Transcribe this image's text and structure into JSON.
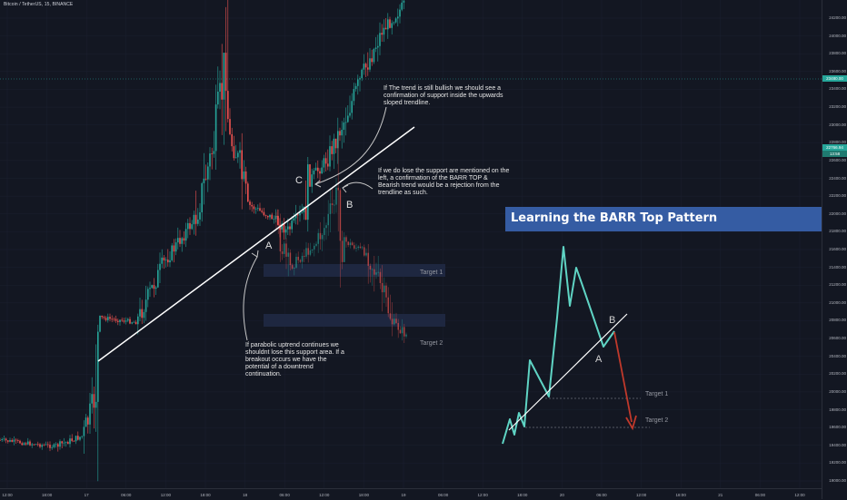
{
  "header": {
    "symbol": "Bitcoin / TetherUS, 15, BINANCE"
  },
  "annotations": {
    "bullish_note": "If The trend is still bullish we should see a confirmation of support inside the upwards sloped trendline.",
    "rejection_note": "If we do lose the support are mentioned on the left, a confirmation of the BARR TOP & Bearish trend would be a rejection from the trendline as such.",
    "parabolic_note": "If parabolic uptrend continues we shouldnt lose this support area. If a breakout occurs we have the potential of a downtrend continuation.",
    "label_a": "A",
    "label_b": "B",
    "label_c": "C",
    "target1": "Target 1",
    "target2": "Target 2"
  },
  "pattern": {
    "title": "Learning the BARR Top Pattern",
    "label_a": "A",
    "label_b": "B",
    "target1": "Target 1",
    "target2": "Target 2"
  },
  "colors": {
    "up": "#26a69a",
    "down": "#ef5350",
    "banner": "#355ca3",
    "pattern_line": "#5fd4c4",
    "bearish_arrow": "#c0392b"
  },
  "price_axis": {
    "ticks": [
      "24200.00",
      "24000.00",
      "23800.00",
      "23600.00",
      "23400.00",
      "23200.00",
      "23000.00",
      "22800.00",
      "22600.00",
      "22400.00",
      "22200.00",
      "22000.00",
      "21800.00",
      "21600.00",
      "21400.00",
      "21200.00",
      "21000.00",
      "20800.00",
      "20600.00",
      "20400.00",
      "20200.00",
      "20000.00",
      "19800.00",
      "19600.00",
      "19400.00",
      "19200.00",
      "19000.00"
    ],
    "current_price": "23480.00",
    "last_price": "22766.94",
    "countdown": "13:58"
  },
  "time_axis": {
    "ticks": [
      "12:00",
      "18:00",
      "17",
      "06:00",
      "12:00",
      "18:00",
      "18",
      "06:00",
      "12:00",
      "18:00",
      "19",
      "06:00",
      "12:00",
      "18:00",
      "20",
      "06:00",
      "12:00",
      "18:00",
      "21",
      "06:00",
      "12:00"
    ]
  },
  "chart_data": {
    "type": "candlestick",
    "symbol": "Bitcoin / TetherUS",
    "timeframe": "15",
    "exchange": "BINANCE",
    "ylim": [
      18900,
      24300
    ],
    "x_ticks": [
      "12:00",
      "18:00",
      "17",
      "06:00",
      "12:00",
      "18:00",
      "18",
      "06:00",
      "12:00",
      "18:00",
      "19",
      "06:00",
      "12:00",
      "18:00",
      "20",
      "06:00",
      "12:00",
      "18:00",
      "21",
      "06:00",
      "12:00"
    ],
    "close_path": [
      {
        "time": "16 12:00",
        "price": 19450
      },
      {
        "time": "16 18:00",
        "price": 19420
      },
      {
        "time": "17 00:00",
        "price": 19550
      },
      {
        "time": "17 01:00",
        "price": 20400
      },
      {
        "time": "17 06:00",
        "price": 20700
      },
      {
        "time": "17 12:00",
        "price": 21300
      },
      {
        "time": "17 18:00",
        "price": 22500
      },
      {
        "time": "17 20:00",
        "price": 23650
      },
      {
        "time": "17 22:00",
        "price": 22400
      },
      {
        "time": "18 00:00",
        "price": 22000
      },
      {
        "time": "18 06:00",
        "price": 21450
      },
      {
        "time": "18 09:00",
        "price": 22300
      },
      {
        "time": "18 12:00",
        "price": 23000
      },
      {
        "time": "18 15:00",
        "price": 23700
      },
      {
        "time": "18 18:00",
        "price": 24300
      }
    ],
    "projection_path": [
      {
        "time": "18 00:00",
        "price": 22000
      },
      {
        "time": "18 06:00",
        "price": 21550
      },
      {
        "time": "18 12:00",
        "price": 22200
      },
      {
        "time": "18 18:00",
        "price": 21500
      },
      {
        "time": "19 00:00",
        "price": 20650
      }
    ],
    "trendline": {
      "from": {
        "time": "17 01:00",
        "price": 20450
      },
      "to": {
        "time": "19 00:00",
        "price": 23000
      }
    },
    "targets": [
      {
        "name": "Target 1",
        "price": 21450
      },
      {
        "name": "Target 2",
        "price": 20620
      }
    ],
    "current_price": 23480,
    "last_price": 22766.94
  }
}
